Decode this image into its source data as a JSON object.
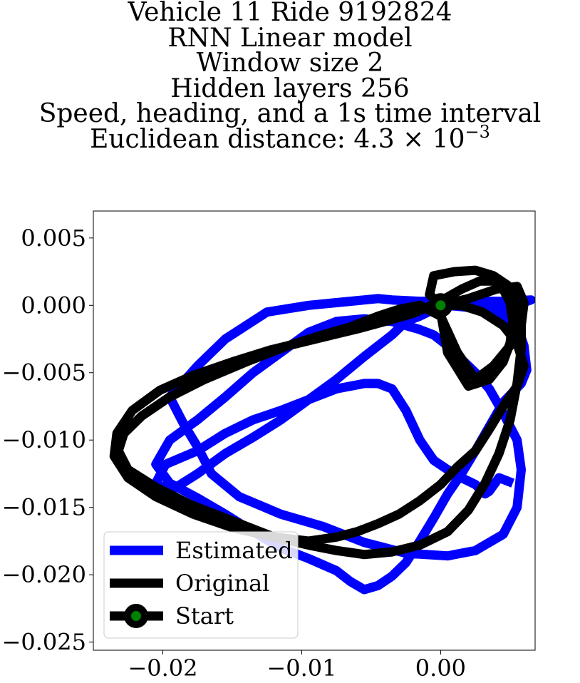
{
  "title": {
    "line1": "Vehicle 11 Ride 9192824",
    "line2": "RNN Linear model",
    "line3": "Window size 2",
    "line4": "Hidden layers 256",
    "line5": "Speed, heading, and a 1s time interval",
    "line6_prefix": "Euclidean distance: 4.3 × 10",
    "line6_exp": "−3"
  },
  "chart_data": {
    "type": "line",
    "xlim": [
      -0.025,
      0.0068
    ],
    "ylim": [
      -0.0256,
      0.007
    ],
    "xticks": [
      {
        "value": -0.02,
        "label": "−0.02"
      },
      {
        "value": -0.01,
        "label": "−0.01"
      },
      {
        "value": 0.0,
        "label": "0.00"
      }
    ],
    "yticks": [
      {
        "value": 0.005,
        "label": "0.005"
      },
      {
        "value": 0.0,
        "label": "0.000"
      },
      {
        "value": -0.005,
        "label": "−0.005"
      },
      {
        "value": -0.01,
        "label": "−0.010"
      },
      {
        "value": -0.015,
        "label": "−0.015"
      },
      {
        "value": -0.02,
        "label": "−0.020"
      },
      {
        "value": -0.025,
        "label": "−0.025"
      }
    ],
    "grid": false,
    "legend_position": "lower-left",
    "series": [
      {
        "name": "Estimated",
        "color": "#0000ff",
        "x": [
          -0.0015,
          0.0005,
          0.0045,
          0.0065,
          0.0045,
          0.0025,
          0.0005,
          -0.0015,
          -0.0035,
          -0.0045,
          -0.0055,
          -0.0075,
          -0.0095,
          -0.0125,
          -0.0155,
          -0.0175,
          -0.0195,
          -0.0185,
          -0.0175,
          -0.0165,
          -0.0145,
          -0.0115,
          -0.0085,
          -0.0055,
          -0.0025,
          0.0005,
          0.0025,
          0.0045,
          0.0055,
          0.0058,
          0.0055,
          0.0045,
          0.0035,
          0.0025,
          0.0015,
          0.0005,
          -0.0005,
          -0.0015,
          -0.0025,
          -0.0035,
          -0.0055,
          -0.0075,
          -0.0095,
          -0.0115,
          -0.0135,
          -0.0155,
          -0.0175,
          -0.0195,
          -0.0205,
          -0.0195,
          -0.0175,
          -0.0155,
          -0.0135,
          -0.0115,
          -0.0095,
          -0.0075,
          -0.0065,
          -0.0055,
          -0.0045,
          -0.0035,
          -0.0025,
          -0.0015,
          -0.0005,
          0.0005,
          0.0015,
          0.0025,
          0.0035,
          0.0045,
          0.0058,
          0.0062,
          0.006,
          0.0055,
          0.0045,
          0.0035,
          0.0025,
          0.0015,
          0.0005,
          -0.0005,
          -0.0015,
          -0.0025,
          -0.0035,
          -0.0055,
          -0.0075,
          -0.0095,
          -0.0115,
          -0.0135,
          -0.0155,
          -0.0175,
          -0.0195,
          -0.0205,
          -0.0198,
          -0.0175,
          -0.0155,
          -0.0135,
          -0.0115,
          -0.0095,
          -0.0075,
          -0.0055,
          -0.0045,
          -0.0035,
          -0.0025,
          -0.0015,
          -0.0005,
          0.0005,
          0.0015,
          0.0025,
          0.0032,
          0.0035,
          0.0042,
          0.0052
        ],
        "y": [
          0.0003,
          0.0003,
          0.0003,
          0.0004,
          -0.0003,
          -0.0003,
          0.0002,
          0.0003,
          0.0004,
          0.0005,
          0.0004,
          0.0002,
          0.0,
          -0.0005,
          -0.0025,
          -0.0045,
          -0.0068,
          -0.0088,
          -0.0105,
          -0.0125,
          -0.0142,
          -0.0155,
          -0.0164,
          -0.0176,
          -0.0184,
          -0.0186,
          -0.0182,
          -0.017,
          -0.015,
          -0.0122,
          -0.01,
          -0.008,
          -0.0062,
          -0.005,
          -0.004,
          -0.003,
          -0.0022,
          -0.0018,
          -0.0015,
          -0.0012,
          -0.001,
          -0.0012,
          -0.002,
          -0.0035,
          -0.005,
          -0.0068,
          -0.0085,
          -0.01,
          -0.0118,
          -0.0132,
          -0.0143,
          -0.0155,
          -0.0168,
          -0.018,
          -0.0188,
          -0.0197,
          -0.0205,
          -0.0211,
          -0.0208,
          -0.0201,
          -0.0191,
          -0.0175,
          -0.0158,
          -0.014,
          -0.0125,
          -0.0108,
          -0.009,
          -0.0072,
          -0.0058,
          -0.0048,
          -0.003,
          -0.0015,
          -0.0008,
          -0.0004,
          -0.0002,
          -0.0001,
          0.0,
          -0.0003,
          -0.0008,
          -0.0012,
          -0.0022,
          -0.0038,
          -0.0055,
          -0.007,
          -0.0085,
          -0.0098,
          -0.011,
          -0.0125,
          -0.0138,
          -0.0132,
          -0.0118,
          -0.0108,
          -0.0095,
          -0.0085,
          -0.0078,
          -0.007,
          -0.0062,
          -0.0058,
          -0.0058,
          -0.0062,
          -0.0078,
          -0.01,
          -0.0115,
          -0.0122,
          -0.0128,
          -0.0133,
          -0.014,
          -0.0138,
          -0.0128,
          -0.0132
        ]
      },
      {
        "name": "Original",
        "color": "#000000",
        "x": [
          0.0,
          0.002,
          0.004,
          0.0055,
          0.006,
          0.0058,
          0.005,
          0.0038,
          0.0025,
          0.0012,
          0.0,
          -0.0015,
          -0.003,
          -0.0045,
          -0.0055,
          -0.0065,
          -0.0085,
          -0.011,
          -0.014,
          -0.017,
          -0.0195,
          -0.0215,
          -0.0228,
          -0.0232,
          -0.0225,
          -0.0205,
          -0.018,
          -0.015,
          -0.012,
          -0.0095,
          -0.0075,
          -0.0055,
          -0.0035,
          -0.0015,
          0.0005,
          0.002,
          0.0032,
          0.0042,
          0.005,
          0.0055,
          0.0058,
          0.0058,
          0.0055,
          0.0048,
          0.0038,
          0.0025,
          0.001,
          -0.0005,
          -0.0008,
          0.0,
          0.0015,
          0.003,
          0.0045,
          0.0055,
          0.006,
          0.0055,
          0.0045,
          0.0035,
          0.0025,
          0.0012,
          0.0,
          -0.0015,
          -0.003,
          -0.0045,
          -0.006,
          -0.0075,
          -0.0095,
          -0.012,
          -0.015,
          -0.0178,
          -0.0205,
          -0.0225,
          -0.0235,
          -0.0233,
          -0.0222,
          -0.0202,
          -0.0178,
          -0.015,
          -0.0122,
          -0.0098,
          -0.0078,
          -0.0058,
          -0.004,
          -0.002,
          -0.0002,
          0.0015,
          0.0028,
          0.0038,
          0.0045,
          0.005,
          0.0052,
          0.005,
          0.0045,
          0.0035,
          0.002,
          0.0005,
          0.0
        ],
        "y": [
          0.0,
          0.0005,
          0.0012,
          0.0014,
          0.0002,
          -0.0015,
          -0.003,
          -0.0045,
          -0.0055,
          -0.0035,
          -0.0008,
          0.0,
          -0.0003,
          -0.0008,
          -0.0012,
          -0.0016,
          -0.0022,
          -0.003,
          -0.0042,
          -0.0055,
          -0.0068,
          -0.0082,
          -0.0095,
          -0.0108,
          -0.0122,
          -0.0135,
          -0.0148,
          -0.016,
          -0.0172,
          -0.0178,
          -0.0182,
          -0.0185,
          -0.0183,
          -0.0178,
          -0.0168,
          -0.0152,
          -0.0132,
          -0.011,
          -0.0085,
          -0.0058,
          -0.0032,
          -0.001,
          0.0005,
          0.0015,
          0.0022,
          0.0026,
          0.0025,
          0.0022,
          0.0008,
          0.0,
          0.0,
          -0.0005,
          -0.0015,
          -0.0028,
          -0.0045,
          -0.006,
          -0.0075,
          -0.0092,
          -0.0108,
          -0.012,
          -0.0133,
          -0.0145,
          -0.0155,
          -0.0162,
          -0.0168,
          -0.0172,
          -0.0175,
          -0.0172,
          -0.0165,
          -0.0155,
          -0.0142,
          -0.0128,
          -0.0112,
          -0.0095,
          -0.0078,
          -0.0063,
          -0.0052,
          -0.0042,
          -0.0033,
          -0.0027,
          -0.0022,
          -0.0017,
          -0.0012,
          -0.0006,
          0.0002,
          0.0012,
          0.0018,
          0.0018,
          0.0012,
          0.0002,
          -0.0012,
          -0.0028,
          -0.0042,
          -0.0055,
          -0.006,
          -0.0035,
          -0.0005
        ]
      }
    ],
    "start_point": {
      "name": "Start",
      "x": 0.0,
      "y": 0.0,
      "edge_color": "#000000",
      "face_color": "#008000"
    },
    "legend": [
      {
        "label": "Estimated",
        "color": "#0000ff",
        "marker": false
      },
      {
        "label": "Original",
        "color": "#000000",
        "marker": false
      },
      {
        "label": "Start",
        "color": "#000000",
        "marker": true,
        "marker_face": "#008000"
      }
    ]
  }
}
